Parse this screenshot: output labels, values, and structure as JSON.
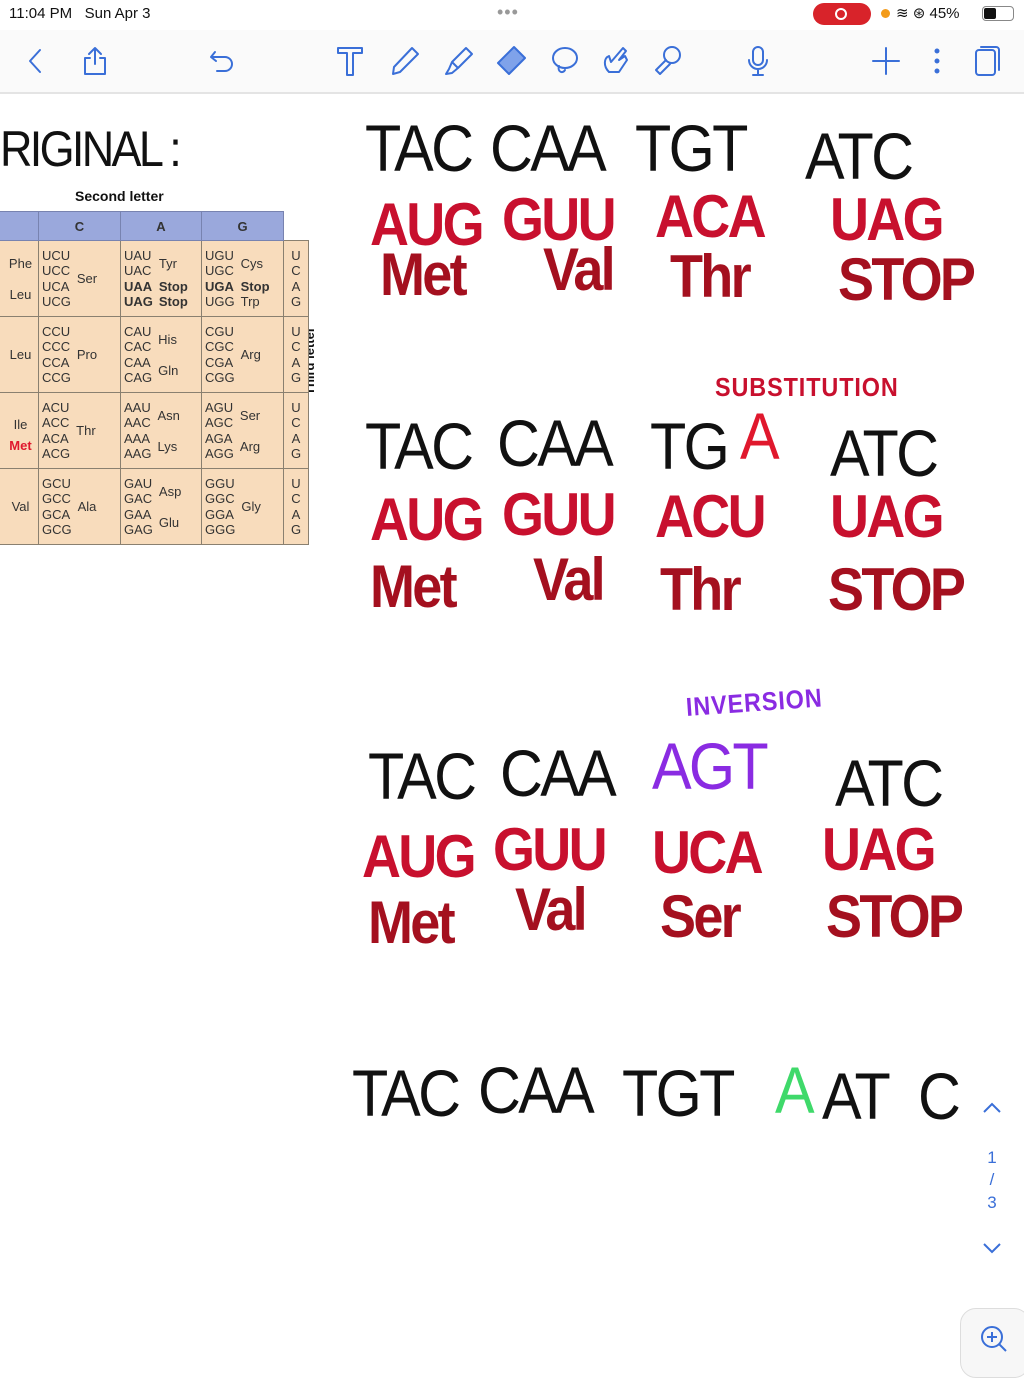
{
  "status": {
    "time": "11:04 PM",
    "date": "Sun Apr 3",
    "battery": "45%",
    "battery_level": 0.45,
    "recording": true
  },
  "toolbar": {
    "icons": [
      "back-chevron-icon",
      "share-icon",
      "undo-icon",
      "text-tool-icon",
      "pen-icon",
      "highlighter-icon",
      "eraser-icon",
      "lasso-icon",
      "hand-pointer-icon",
      "laser-pointer-icon",
      "microphone-icon",
      "add-icon",
      "more-icon",
      "pages-icon"
    ],
    "active": "eraser-icon",
    "accent": "#3a6fd8"
  },
  "table": {
    "second_letter_label": "Second letter",
    "third_letter_label": "Third letter",
    "headers": [
      "",
      "C",
      "A",
      "G"
    ],
    "rows": [
      {
        "first": [
          "Phe",
          "Leu"
        ],
        "first_met": "",
        "c": {
          "codons": [
            "UCU",
            "UCC",
            "UCA",
            "UCG"
          ],
          "aa": "Ser"
        },
        "a": {
          "codons": [
            "UAU",
            "UAC",
            "UAA",
            "UAG"
          ],
          "aa": [
            "Tyr",
            "Stop",
            "Stop"
          ]
        },
        "g": {
          "codons": [
            "UGU",
            "UGC",
            "UGA",
            "UGG"
          ],
          "aa": [
            "Cys",
            "Stop",
            "Trp"
          ]
        },
        "third": [
          "U",
          "C",
          "A",
          "G"
        ]
      },
      {
        "first": [
          "Leu"
        ],
        "first_met": "",
        "c": {
          "codons": [
            "CCU",
            "CCC",
            "CCA",
            "CCG"
          ],
          "aa": "Pro"
        },
        "a": {
          "codons": [
            "CAU",
            "CAC",
            "CAA",
            "CAG"
          ],
          "aa": [
            "His",
            "Gln"
          ]
        },
        "g": {
          "codons": [
            "CGU",
            "CGC",
            "CGA",
            "CGG"
          ],
          "aa": [
            "Arg"
          ]
        },
        "third": [
          "U",
          "C",
          "A",
          "G"
        ]
      },
      {
        "first": [
          "Ile"
        ],
        "first_met": "Met",
        "c": {
          "codons": [
            "ACU",
            "ACC",
            "ACA",
            "ACG"
          ],
          "aa": "Thr"
        },
        "a": {
          "codons": [
            "AAU",
            "AAC",
            "AAA",
            "AAG"
          ],
          "aa": [
            "Asn",
            "Lys"
          ]
        },
        "g": {
          "codons": [
            "AGU",
            "AGC",
            "AGA",
            "AGG"
          ],
          "aa": [
            "Ser",
            "Arg"
          ]
        },
        "third": [
          "U",
          "C",
          "A",
          "G"
        ]
      },
      {
        "first": [
          "Val"
        ],
        "first_met": "",
        "c": {
          "codons": [
            "GCU",
            "GCC",
            "GCA",
            "GCG"
          ],
          "aa": "Ala"
        },
        "a": {
          "codons": [
            "GAU",
            "GAC",
            "GAA",
            "GAG"
          ],
          "aa": [
            "Asp",
            "Glu"
          ]
        },
        "g": {
          "codons": [
            "GGU",
            "GGC",
            "GGA",
            "GGG"
          ],
          "aa": [
            "Gly"
          ]
        },
        "third": [
          "U",
          "C",
          "A",
          "G"
        ]
      }
    ]
  },
  "notes": {
    "original": "RIGINAL :",
    "s1": {
      "dna": [
        "TAC",
        "CAA",
        "TGT",
        "ATC"
      ],
      "mrna": [
        "AUG",
        "GUU",
        "ACA",
        "UAG"
      ],
      "aa": [
        "Met",
        "Val",
        "Thr",
        "STOP"
      ]
    },
    "s2": {
      "label": "SUBSTITUTION",
      "dna": [
        "TAC",
        "CAA",
        "TG",
        "A",
        "ATC"
      ],
      "mrna": [
        "AUG",
        "GUU",
        "ACU",
        "UAG"
      ],
      "aa": [
        "Met",
        "Val",
        "Thr",
        "STOP"
      ]
    },
    "s3": {
      "label": "INVERSION",
      "dna": [
        "TAC",
        "CAA",
        "AGT",
        "ATC"
      ],
      "mrna": [
        "AUG",
        "GUU",
        "UCA",
        "UAG"
      ],
      "aa": [
        "Met",
        "Val",
        "Ser",
        "STOP"
      ]
    },
    "s4": {
      "dna": [
        "TAC",
        "CAA",
        "TGT",
        "A",
        "AT",
        "C"
      ]
    },
    "colors": {
      "ink": "#111111",
      "mrna": "#c8102e",
      "aa": "#a4101f",
      "substitution": "#e0182d",
      "inversion": "#8a2be2",
      "insertion": "#3fd96a"
    }
  },
  "pager": {
    "current": "1",
    "separator": "/",
    "total": "3"
  }
}
